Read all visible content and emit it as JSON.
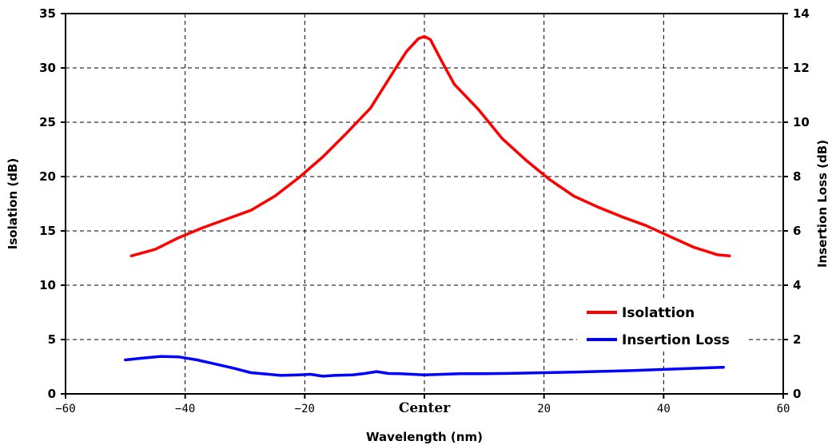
{
  "chart_data": {
    "type": "line",
    "xlabel": "Wavelength (nm)",
    "ylabel_left": "Isolation (dB)",
    "ylabel_right": "Insertion Loss (dB)",
    "xlim": [
      -60,
      60
    ],
    "ylim_left": [
      0,
      35
    ],
    "ylim_right": [
      0,
      14
    ],
    "x_ticks": [
      "-60",
      "-40",
      "-20",
      "Center",
      "20",
      "40",
      "60"
    ],
    "x_tick_values": [
      -60,
      -40,
      -20,
      0,
      20,
      40,
      60
    ],
    "y_left_ticks": [
      "0",
      "5",
      "10",
      "15",
      "20",
      "25",
      "30",
      "35"
    ],
    "y_right_ticks": [
      "0",
      "2",
      "4",
      "6",
      "8",
      "10",
      "12",
      "14"
    ],
    "grid": true,
    "legend_position": "lower-right",
    "series": [
      {
        "name": "Isolattion",
        "axis": "left",
        "color": "#ff0000",
        "x": [
          -49,
          -45,
          -41,
          -37,
          -33,
          -29,
          -25,
          -21,
          -17,
          -13,
          -9,
          -5,
          -3,
          -1,
          0,
          1,
          3,
          5,
          9,
          13,
          17,
          21,
          25,
          29,
          33,
          37,
          41,
          45,
          49,
          51
        ],
        "y": [
          12.7,
          13.3,
          14.4,
          15.3,
          16.1,
          16.9,
          18.2,
          19.9,
          21.8,
          24.0,
          26.3,
          29.8,
          31.5,
          32.7,
          32.9,
          32.6,
          30.5,
          28.5,
          26.2,
          23.5,
          21.5,
          19.7,
          18.2,
          17.2,
          16.3,
          15.5,
          14.5,
          13.5,
          12.8,
          12.7
        ]
      },
      {
        "name": "Insertion Loss",
        "axis": "right",
        "color": "#0000ff",
        "x": [
          -50,
          -47,
          -44,
          -41,
          -38,
          -35,
          -32,
          -29,
          -26,
          -24,
          -21,
          -19,
          -17,
          -15,
          -12,
          -10,
          -8,
          -6,
          -4,
          -2,
          0,
          3,
          6,
          10,
          15,
          20,
          25,
          30,
          35,
          40,
          45,
          50
        ],
        "y": [
          1.25,
          1.32,
          1.38,
          1.36,
          1.25,
          1.1,
          0.95,
          0.78,
          0.72,
          0.68,
          0.7,
          0.72,
          0.65,
          0.68,
          0.7,
          0.75,
          0.82,
          0.75,
          0.74,
          0.72,
          0.7,
          0.72,
          0.74,
          0.74,
          0.76,
          0.78,
          0.8,
          0.83,
          0.86,
          0.9,
          0.94,
          0.98
        ]
      }
    ]
  }
}
